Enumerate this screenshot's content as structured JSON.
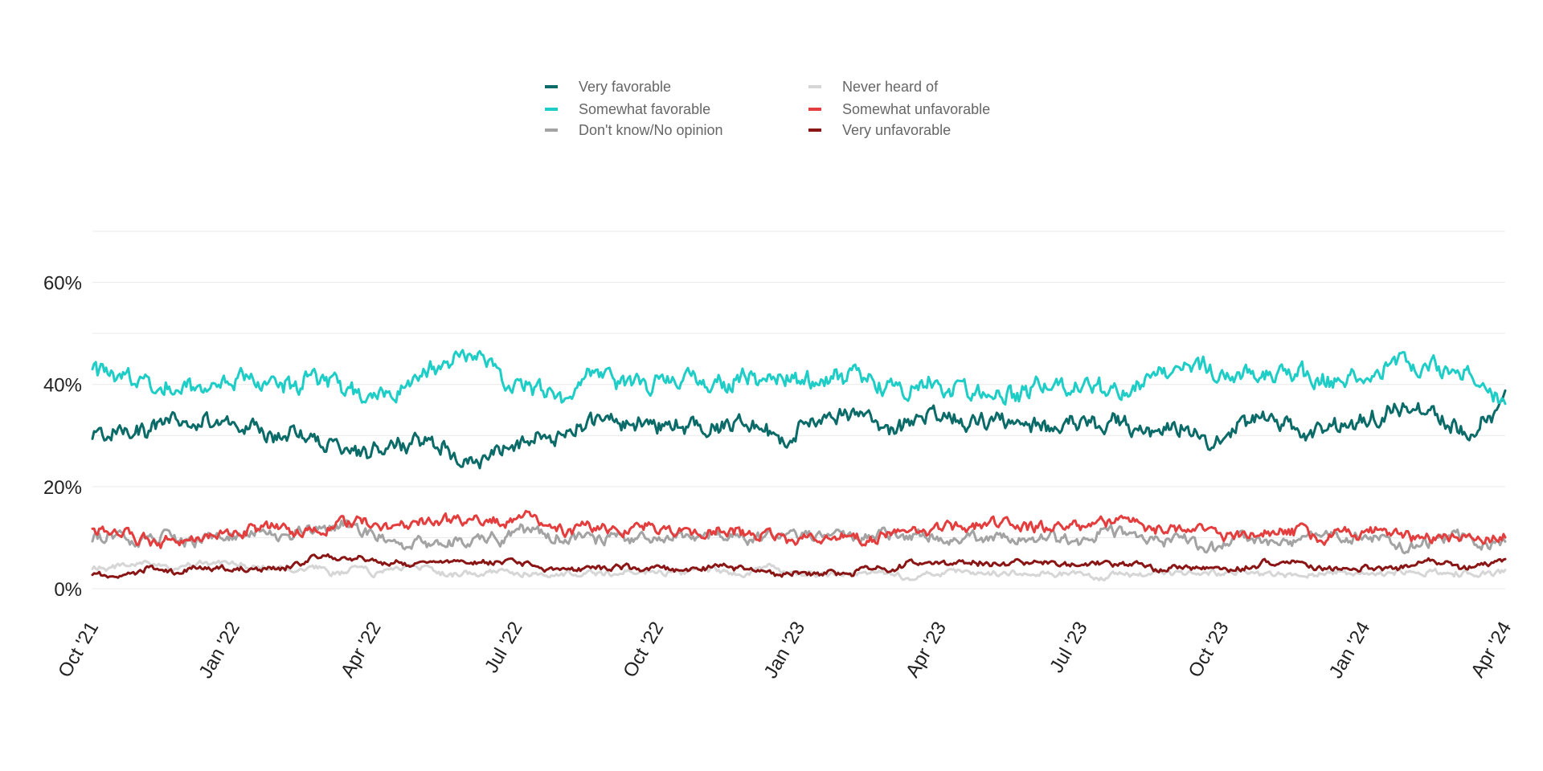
{
  "chart_data": {
    "type": "line",
    "x_range": [
      "Oct '21",
      "Apr '24"
    ],
    "xticks": [
      "Oct '21",
      "Jan '22",
      "Apr '22",
      "Jul '22",
      "Oct '22",
      "Jan '23",
      "Apr '23",
      "Jul '23",
      "Oct '23",
      "Jan '24",
      "Apr '24"
    ],
    "yticks": [
      "0%",
      "20%",
      "40%",
      "60%"
    ],
    "ylim": [
      0,
      70
    ],
    "grid": true,
    "legend_position": "top-center",
    "series": [
      {
        "name": "Very favorable",
        "color": "#0a6b68",
        "values": [
          30,
          31,
          32,
          31,
          33,
          32,
          33,
          32,
          31,
          30,
          31,
          29,
          28,
          27,
          27,
          28,
          29,
          28,
          26,
          25,
          27,
          29,
          31,
          30,
          32,
          33,
          32,
          33,
          31,
          32,
          31,
          32,
          33,
          31,
          30,
          32,
          33,
          35,
          33,
          31,
          33,
          34,
          33,
          32,
          33,
          34,
          33,
          32,
          33,
          32,
          33,
          31,
          30,
          32,
          31,
          30,
          32,
          34,
          33,
          31,
          31,
          32,
          33,
          34,
          36,
          35,
          33,
          31,
          33,
          37
        ]
      },
      {
        "name": "Somewhat favorable",
        "color": "#1fcdc7",
        "values": [
          43,
          41,
          42,
          41,
          40,
          39,
          40,
          41,
          40,
          39,
          40,
          41,
          40,
          38,
          38,
          39,
          41,
          43,
          45,
          46,
          42,
          40,
          39,
          38,
          41,
          42,
          41,
          40,
          41,
          42,
          41,
          40,
          41,
          40,
          41,
          41,
          40,
          42,
          41,
          39,
          40,
          41,
          40,
          39,
          40,
          38,
          40,
          40,
          40,
          39,
          38,
          39,
          41,
          43,
          44,
          43,
          42,
          43,
          43,
          42,
          41,
          41,
          42,
          43,
          44,
          43,
          43,
          42,
          39,
          37
        ]
      },
      {
        "name": "Don't know/No opinion",
        "color": "#a3a3a3",
        "values": [
          10,
          10,
          9,
          10,
          9,
          9,
          10,
          10,
          11,
          11,
          11,
          12,
          12,
          11,
          10,
          9,
          10,
          9,
          9,
          10,
          10,
          11,
          10,
          10,
          10,
          10,
          10,
          10,
          10,
          10,
          10,
          10,
          10,
          10,
          11,
          10,
          11,
          10,
          10,
          11,
          10,
          10,
          9,
          10,
          10,
          10,
          9,
          10,
          9,
          10,
          11,
          10,
          9,
          10,
          9,
          9,
          10,
          9,
          9,
          10,
          10,
          10,
          10,
          10,
          9,
          9,
          10,
          10,
          9,
          9
        ]
      },
      {
        "name": "Never heard of",
        "color": "#d6d6d6",
        "values": [
          4,
          4,
          5,
          5,
          4,
          5,
          5,
          5,
          4,
          4,
          4,
          4,
          3,
          4,
          3,
          4,
          4,
          3,
          3,
          3,
          4,
          3,
          3,
          3,
          3,
          3,
          3,
          3,
          3,
          3,
          4,
          3,
          3,
          4,
          3,
          3,
          3,
          3,
          3,
          3,
          2,
          3,
          3,
          3,
          3,
          3,
          3,
          3,
          3,
          2,
          3,
          3,
          3,
          3,
          3,
          3,
          3,
          3,
          3,
          3,
          3,
          3,
          3,
          3,
          3,
          3,
          3,
          3,
          3,
          3
        ]
      },
      {
        "name": "Somewhat unfavorable",
        "color": "#e43d3d",
        "values": [
          11,
          11,
          10,
          9,
          9,
          10,
          10,
          11,
          12,
          12,
          11,
          12,
          13,
          13,
          12,
          12,
          13,
          13,
          13,
          14,
          13,
          14,
          13,
          12,
          12,
          12,
          11,
          12,
          11,
          11,
          11,
          12,
          11,
          11,
          10,
          10,
          10,
          10,
          10,
          11,
          11,
          11,
          12,
          12,
          13,
          13,
          12,
          12,
          12,
          13,
          13,
          13,
          12,
          12,
          12,
          11,
          11,
          11,
          11,
          11,
          10,
          11,
          11,
          11,
          10,
          10,
          10,
          10,
          10,
          10
        ]
      },
      {
        "name": "Very unfavorable",
        "color": "#8a1515",
        "values": [
          3,
          3,
          3,
          4,
          3,
          4,
          4,
          4,
          4,
          4,
          5,
          6,
          6,
          6,
          5,
          5,
          5,
          5,
          5,
          5,
          5,
          5,
          4,
          4,
          4,
          4,
          4,
          4,
          4,
          4,
          4,
          4,
          4,
          3,
          3,
          3,
          3,
          3,
          4,
          4,
          5,
          5,
          5,
          5,
          5,
          5,
          5,
          5,
          5,
          5,
          5,
          5,
          4,
          4,
          4,
          4,
          4,
          5,
          5,
          5,
          4,
          4,
          4,
          4,
          4,
          5,
          5,
          4,
          5,
          6
        ]
      }
    ]
  }
}
